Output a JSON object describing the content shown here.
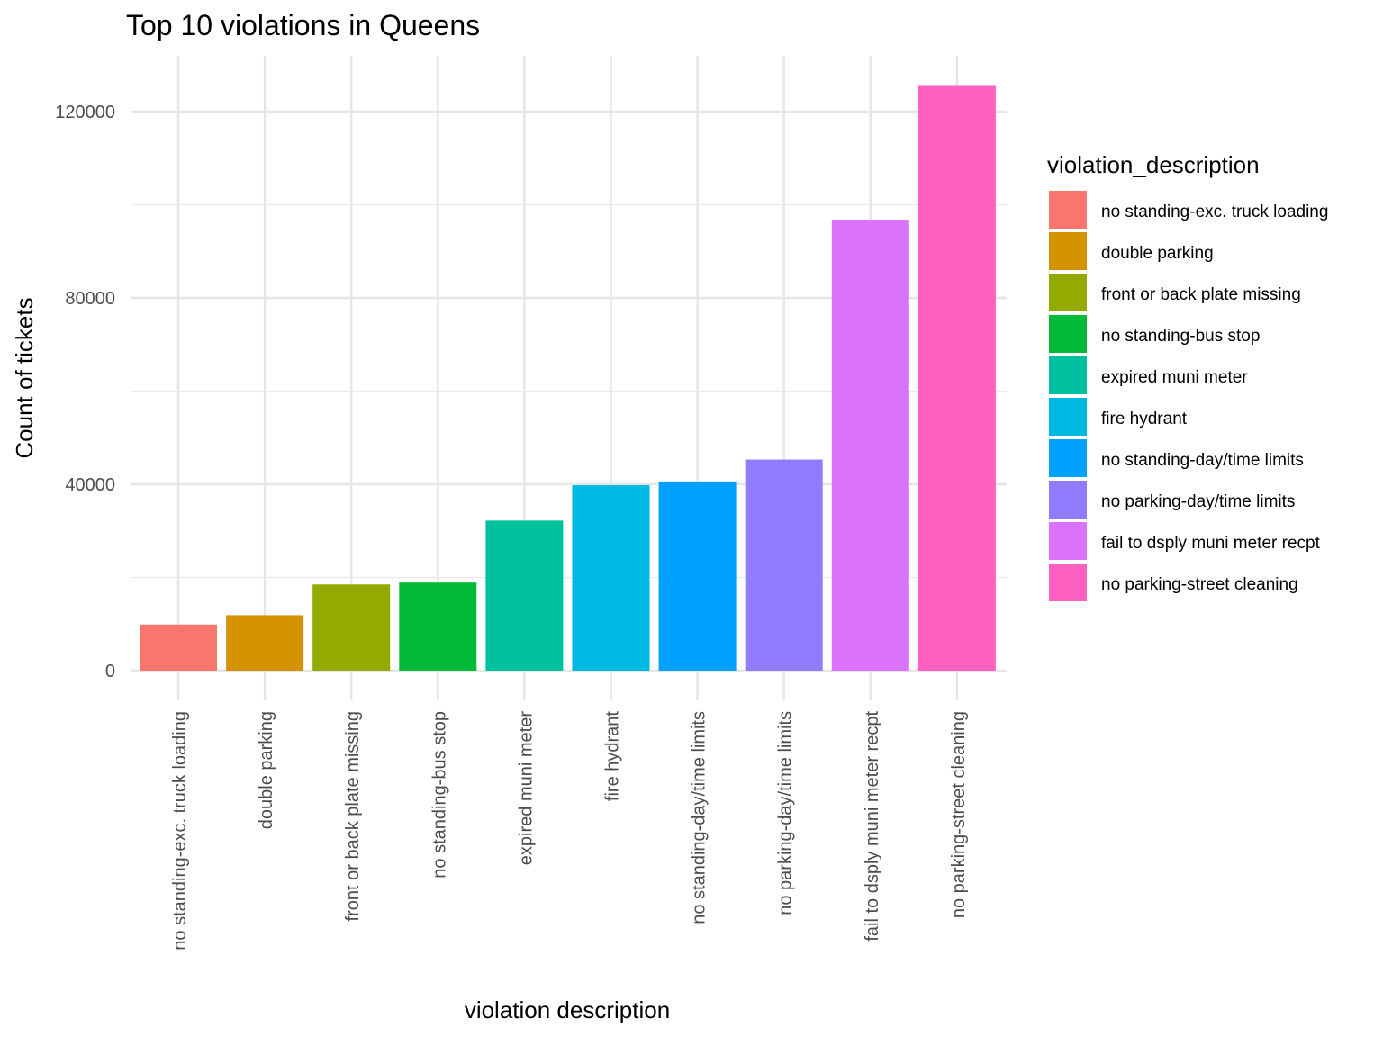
{
  "chart_data": {
    "type": "bar",
    "title": "Top 10 violations in Queens",
    "xlabel": "violation description",
    "ylabel": "Count of tickets",
    "ylim": [
      0,
      130000
    ],
    "yticks": [
      0,
      40000,
      80000,
      120000
    ],
    "grid": true,
    "legend": {
      "title": "violation_description",
      "position": "right"
    },
    "categories": [
      "no standing-exc. truck loading",
      "double parking",
      "front or back plate missing",
      "no standing-bus stop",
      "expired muni meter",
      "fire hydrant",
      "no standing-day/time limits",
      "no parking-day/time limits",
      "fail to dsply muni meter recpt",
      "no parking-street cleaning"
    ],
    "values": [
      9900,
      11900,
      18500,
      18900,
      32200,
      39800,
      40600,
      45300,
      96800,
      125700
    ],
    "colors": [
      "#F8766D",
      "#D39200",
      "#93AA00",
      "#00BA38",
      "#00C19F",
      "#00B9E3",
      "#00A1FF",
      "#8F7CFF",
      "#DB72FB",
      "#FF61C3"
    ]
  }
}
